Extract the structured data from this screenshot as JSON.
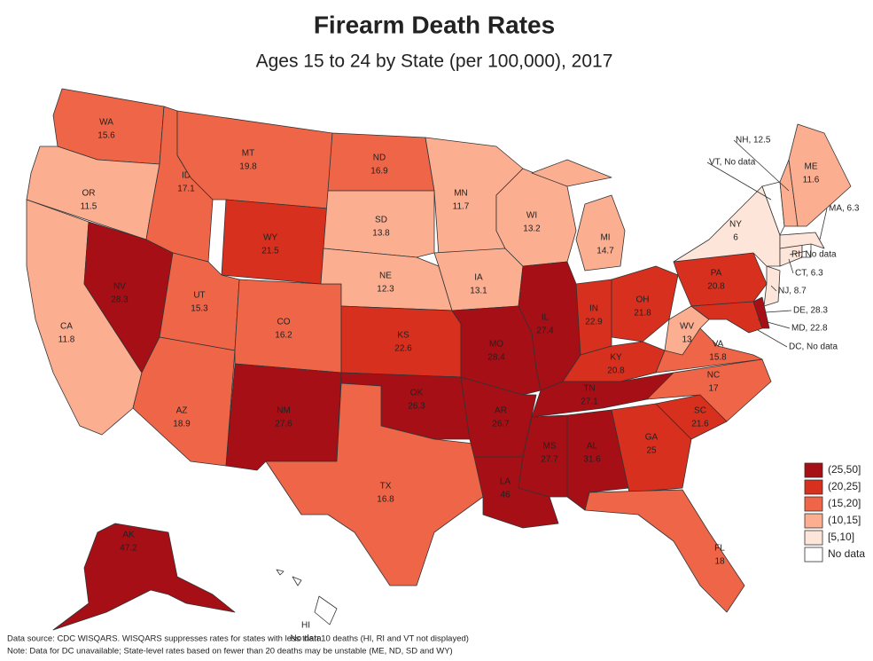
{
  "title": "Firearm Death Rates",
  "subtitle": "Ages 15 to 24 by State (per 100,000), 2017",
  "states": [
    {
      "abbr": "WA",
      "value": 15.6
    },
    {
      "abbr": "OR",
      "value": 11.5
    },
    {
      "abbr": "CA",
      "value": 11.8
    },
    {
      "abbr": "NV",
      "value": 28.3
    },
    {
      "abbr": "ID",
      "value": 17.1
    },
    {
      "abbr": "MT",
      "value": 19.8
    },
    {
      "abbr": "WY",
      "value": 21.5
    },
    {
      "abbr": "UT",
      "value": 15.3
    },
    {
      "abbr": "AZ",
      "value": 18.9
    },
    {
      "abbr": "CO",
      "value": 16.2
    },
    {
      "abbr": "NM",
      "value": 27.6
    },
    {
      "abbr": "ND",
      "value": 16.9
    },
    {
      "abbr": "SD",
      "value": 13.8
    },
    {
      "abbr": "NE",
      "value": 12.3
    },
    {
      "abbr": "KS",
      "value": 22.6
    },
    {
      "abbr": "OK",
      "value": 26.3
    },
    {
      "abbr": "TX",
      "value": 16.8
    },
    {
      "abbr": "MN",
      "value": 11.7
    },
    {
      "abbr": "IA",
      "value": 13.1
    },
    {
      "abbr": "MO",
      "value": 28.4
    },
    {
      "abbr": "AR",
      "value": 26.7
    },
    {
      "abbr": "LA",
      "value": 46
    },
    {
      "abbr": "WI",
      "value": 13.2
    },
    {
      "abbr": "IL",
      "value": 27.4
    },
    {
      "abbr": "MI",
      "value": 14.7
    },
    {
      "abbr": "IN",
      "value": 22.9
    },
    {
      "abbr": "OH",
      "value": 21.8
    },
    {
      "abbr": "KY",
      "value": 20.8
    },
    {
      "abbr": "TN",
      "value": 27.1
    },
    {
      "abbr": "MS",
      "value": 27.7
    },
    {
      "abbr": "AL",
      "value": 31.6
    },
    {
      "abbr": "GA",
      "value": 25
    },
    {
      "abbr": "FL",
      "value": 18
    },
    {
      "abbr": "SC",
      "value": 21.6
    },
    {
      "abbr": "NC",
      "value": 17
    },
    {
      "abbr": "VA",
      "value": 15.8
    },
    {
      "abbr": "WV",
      "value": 13
    },
    {
      "abbr": "PA",
      "value": 20.8
    },
    {
      "label": "MD, 22.8",
      "value": 22.8
    },
    {
      "label": "DE, 28.3",
      "value": 28.3
    },
    {
      "label": "NJ, 8.7",
      "value": 8.7
    },
    {
      "abbr": "NY",
      "value": 6
    },
    {
      "label": "CT, 6.3",
      "value": 6.3
    },
    {
      "label": "RI, No data",
      "value": null
    },
    {
      "label": "MA, 6.3",
      "value": 6.3
    },
    {
      "label": "VT, No data",
      "value": null
    },
    {
      "label": "NH, 12.5",
      "value": 12.5
    },
    {
      "abbr": "ME",
      "value": 11.6
    },
    {
      "abbr": "AK",
      "value": 47.2
    },
    {
      "abbr": "HI",
      "value": null,
      "value_label": "No data"
    },
    {
      "label": "DC, No data",
      "value": null
    }
  ],
  "legend": [
    {
      "label": "(25,50]",
      "range": [
        25,
        50
      ],
      "color": "#a50f15"
    },
    {
      "label": "(20,25]",
      "range": [
        20,
        25
      ],
      "color": "#d7301f"
    },
    {
      "label": "(15,20]",
      "range": [
        15,
        20
      ],
      "color": "#ef6548"
    },
    {
      "label": "(10,15]",
      "range": [
        10,
        15
      ],
      "color": "#fcae91"
    },
    {
      "label": "[5,10]",
      "range": [
        5,
        10
      ],
      "color": "#fee5d9"
    },
    {
      "label": "No data",
      "range": null,
      "color": "#ffffff"
    }
  ],
  "notes": [
    "Data source: CDC WISQARS. WISQARS suppresses rates for states with less than 10 deaths (HI, RI and VT not displayed)",
    "Note: Data for DC unavailable; State-level rates based on fewer than 20 deaths may be unstable (ME, ND, SD and WY)"
  ]
}
